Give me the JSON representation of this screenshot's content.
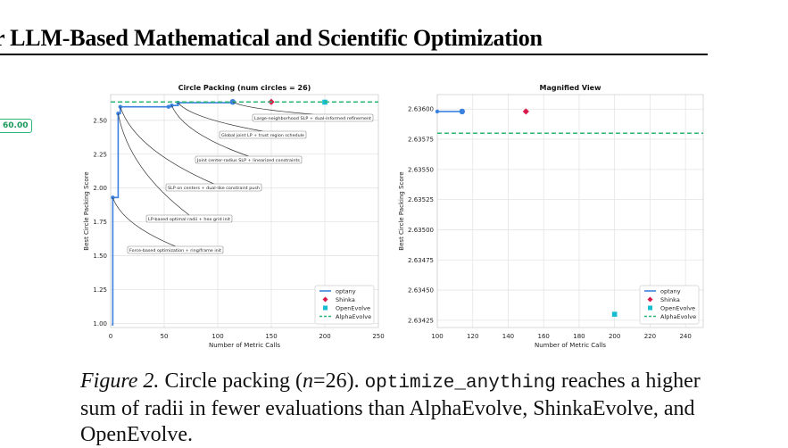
{
  "header": {
    "title": "r LLM-Based Mathematical and Scientific Optimization"
  },
  "badge": {
    "label": "60.00"
  },
  "chart_data": [
    {
      "type": "line",
      "title": "Circle Packing (num circles = 26)",
      "xlabel": "Number of Metric Calls",
      "ylabel": "Best Circle Packing Score",
      "xlim": [
        0,
        250
      ],
      "ylim": [
        0.97,
        2.69
      ],
      "xticks": [
        0,
        50,
        100,
        150,
        200,
        250
      ],
      "yticks": [
        1.0,
        1.25,
        1.5,
        1.75,
        2.0,
        2.25,
        2.5
      ],
      "ytick_labels": [
        "1.00",
        "1.25",
        "1.50",
        "1.75",
        "2.00",
        "2.25",
        "2.50"
      ],
      "grid": true,
      "legend_position": "lower-right",
      "series": [
        {
          "name": "optany",
          "kind": "step-line",
          "color": "#3b82e0",
          "x": [
            1,
            2,
            7,
            9,
            54,
            57,
            63,
            114
          ],
          "y": [
            0.99,
            1.93,
            2.55,
            2.6,
            2.6,
            2.61,
            2.63,
            2.636
          ]
        },
        {
          "name": "Shinka",
          "kind": "marker-diamond",
          "color": "#d81b4a",
          "x": [
            150
          ],
          "y": [
            2.636
          ]
        },
        {
          "name": "OpenEvolve",
          "kind": "marker-square",
          "color": "#17becf",
          "x": [
            200
          ],
          "y": [
            2.634
          ]
        },
        {
          "name": "AlphaEvolve",
          "kind": "hline-dashed",
          "color": "#2bb673",
          "y": 2.6358
        }
      ],
      "annotations": [
        {
          "text": "Large-neighborhood SLP + dual-informed refinement",
          "point": [
            114,
            2.636
          ]
        },
        {
          "text": "Global joint LP + trust region schedule",
          "point": [
            63,
            2.63
          ]
        },
        {
          "text": "Joint center-radius SLP + linearized constraints",
          "point": [
            57,
            2.61
          ]
        },
        {
          "text": "SLP on centers + dual-like constraint push",
          "point": [
            9,
            2.6
          ]
        },
        {
          "text": "LP-based optimal radii + hex grid init",
          "point": [
            7,
            2.55
          ]
        },
        {
          "text": "Force-based optimization + ring/frame init",
          "point": [
            2,
            1.93
          ]
        }
      ]
    },
    {
      "type": "line",
      "title": "Magnified View",
      "xlabel": "Number of Metric Calls",
      "ylabel": "Best Circle Packing Score",
      "xlim": [
        100,
        250
      ],
      "ylim": [
        2.63419,
        2.63612
      ],
      "xticks": [
        100,
        120,
        140,
        160,
        180,
        200,
        220,
        240
      ],
      "yticks": [
        2.63425,
        2.6345,
        2.63475,
        2.635,
        2.63525,
        2.6355,
        2.63575,
        2.636
      ],
      "ytick_labels": [
        "2.63425",
        "2.63450",
        "2.63475",
        "2.63500",
        "2.63525",
        "2.63550",
        "2.63575",
        "2.63600"
      ],
      "grid": true,
      "legend_position": "lower-right",
      "series": [
        {
          "name": "optany",
          "kind": "step-line",
          "color": "#3b82e0",
          "x": [
            100,
            114
          ],
          "y": [
            2.63598,
            2.63598
          ]
        },
        {
          "name": "Shinka",
          "kind": "marker-diamond",
          "color": "#d81b4a",
          "x": [
            150
          ],
          "y": [
            2.63598
          ]
        },
        {
          "name": "OpenEvolve",
          "kind": "marker-square",
          "color": "#17becf",
          "x": [
            200
          ],
          "y": [
            2.6343
          ]
        },
        {
          "name": "AlphaEvolve",
          "kind": "hline-dashed",
          "color": "#2bb673",
          "y": 2.6358
        }
      ]
    }
  ],
  "caption": {
    "fig_label": "Figure 2.",
    "text_before": " Circle packing (",
    "math": "n",
    "text_eq": "=26). ",
    "code": "optimize_anything",
    "text_after": " reaches a higher sum of radii in fewer evaluations than AlphaEvolve, ShinkaEvolve, and OpenEvolve."
  }
}
